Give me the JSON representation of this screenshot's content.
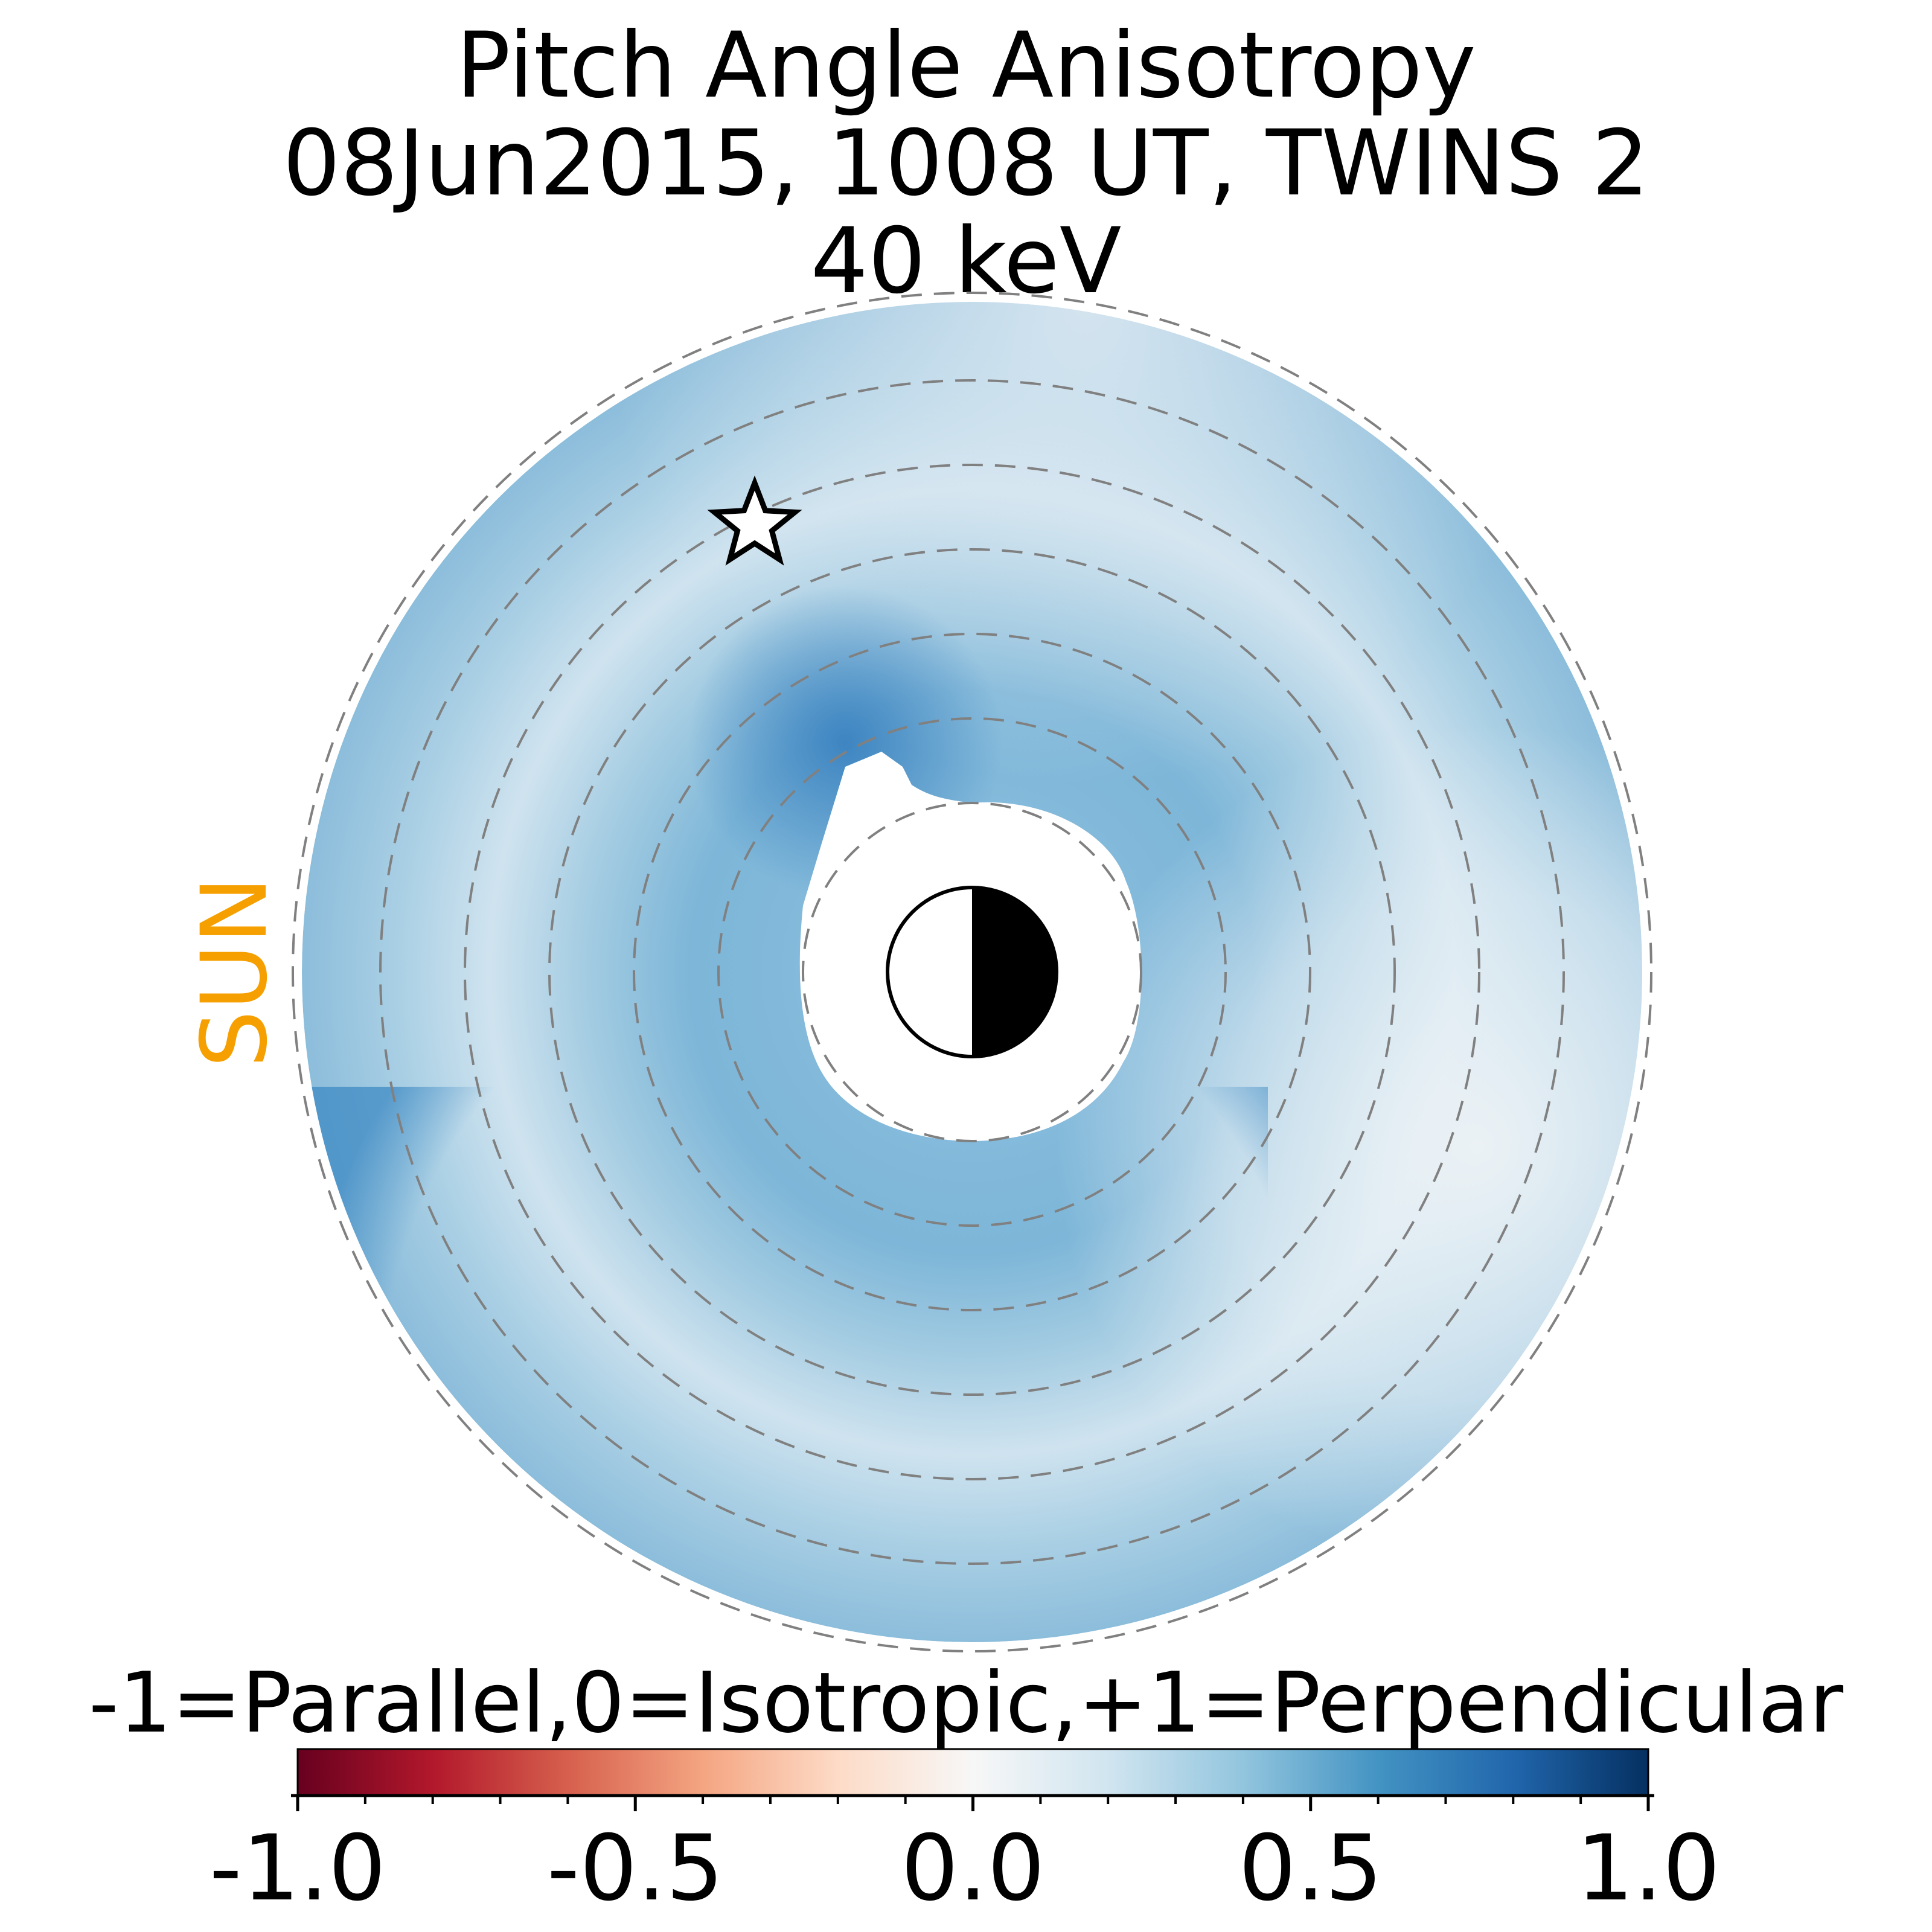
{
  "chart_data": {
    "type": "heatmap",
    "title_lines": [
      "Pitch Angle Anisotropy",
      "08Jun2015, 1008 UT,  TWINS 2",
      "40 keV"
    ],
    "sun_label": "SUN",
    "sun_color": "#f5a000",
    "colorbar": {
      "label": "-1=Parallel,0=Isotropic,+1=Perpendicular",
      "vmin": -1.0,
      "vmax": 1.0,
      "ticks": [
        -1.0,
        -0.5,
        0.0,
        0.5,
        1.0
      ],
      "tick_labels": [
        "-1.0",
        "-0.5",
        "0.0",
        "0.5",
        "1.0"
      ],
      "minor_tick_step": 0.1,
      "colormap": "RdBu",
      "stops": [
        "#67001f",
        "#b2182b",
        "#d6604d",
        "#f4a582",
        "#fddbc7",
        "#f7f7f7",
        "#d1e5f0",
        "#92c5de",
        "#4393c3",
        "#2166ac",
        "#053061"
      ]
    },
    "dashed_circle_color": "#808080",
    "map_colors": {
      "light": "#d3e6f1",
      "medium": "#a6cde3",
      "strong": "#7fb7d9",
      "dark": "#3f86c2",
      "pale_dusk": "#eaf2f7"
    },
    "earth": {
      "day_side": "#ffffff",
      "night_side": "#000000"
    },
    "marker": {
      "symbol": "star"
    }
  }
}
